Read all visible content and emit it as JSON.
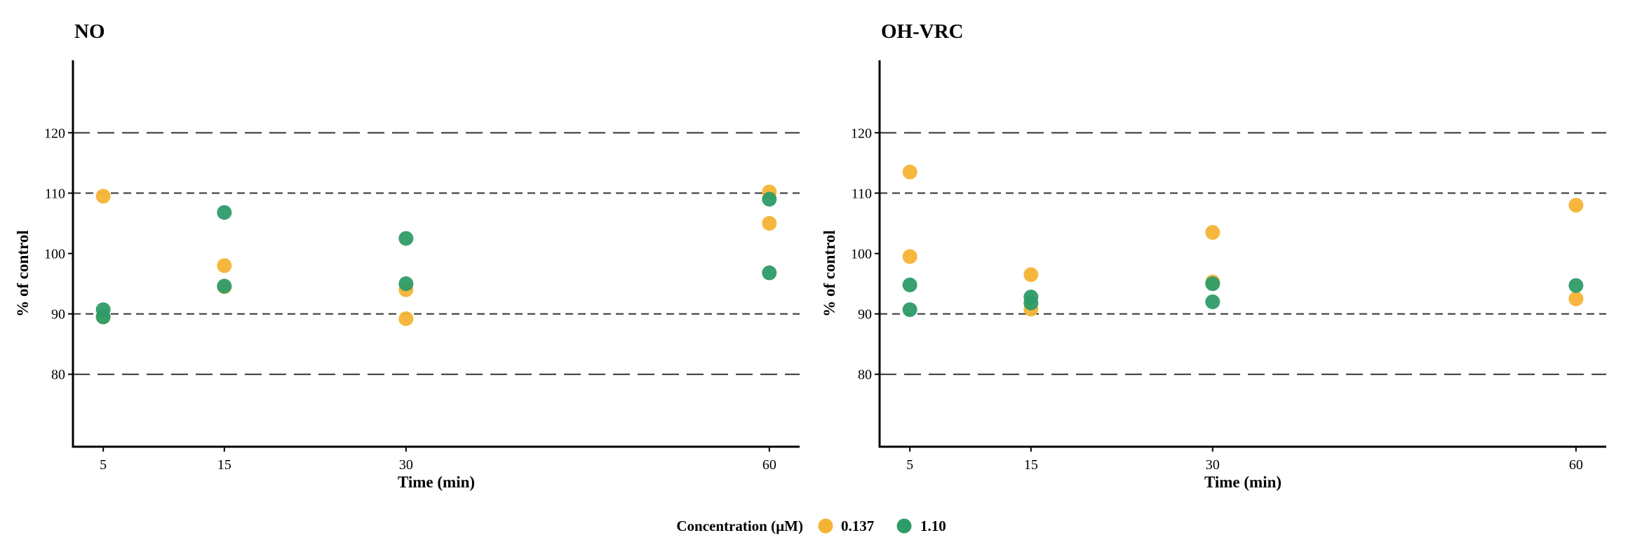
{
  "legend": {
    "title": "Concentration (µM)",
    "items": [
      {
        "label": "0.137",
        "color": "#F5B335"
      },
      {
        "label": "1.10",
        "color": "#2E9B68"
      }
    ]
  },
  "chart_data": [
    {
      "type": "scatter",
      "title": "NO",
      "xlabel": "Time (min)",
      "ylabel": "% of control",
      "x_ticks": [
        5,
        15,
        30,
        60
      ],
      "y_ticks": [
        80,
        90,
        100,
        110,
        120
      ],
      "xlim": [
        2.5,
        62.5
      ],
      "ylim": [
        68,
        132
      ],
      "reference_lines": {
        "long_dash": [
          80,
          120
        ],
        "short_dash": [
          90,
          110
        ]
      },
      "series": [
        {
          "name": "0.137",
          "color": "#F5B335",
          "points": [
            [
              5,
              109.5
            ],
            [
              5,
              89.5
            ],
            [
              15,
              98.0
            ],
            [
              15,
              94.5
            ],
            [
              30,
              94.0
            ],
            [
              30,
              89.2
            ],
            [
              60,
              110.2
            ],
            [
              60,
              105.0
            ]
          ]
        },
        {
          "name": "1.10",
          "color": "#2E9B68",
          "points": [
            [
              5,
              90.7
            ],
            [
              5,
              89.5
            ],
            [
              15,
              106.8
            ],
            [
              15,
              94.6
            ],
            [
              30,
              102.5
            ],
            [
              30,
              95.0
            ],
            [
              60,
              109.0
            ],
            [
              60,
              96.8
            ]
          ]
        }
      ]
    },
    {
      "type": "scatter",
      "title": "OH-VRC",
      "xlabel": "Time (min)",
      "ylabel": "% of control",
      "x_ticks": [
        5,
        15,
        30,
        60
      ],
      "y_ticks": [
        80,
        90,
        100,
        110,
        120
      ],
      "xlim": [
        2.5,
        62.5
      ],
      "ylim": [
        68,
        132
      ],
      "reference_lines": {
        "long_dash": [
          80,
          120
        ],
        "short_dash": [
          90,
          110
        ]
      },
      "series": [
        {
          "name": "0.137",
          "color": "#F5B335",
          "points": [
            [
              5,
              113.5
            ],
            [
              5,
              99.5
            ],
            [
              15,
              96.5
            ],
            [
              15,
              90.8
            ],
            [
              30,
              103.5
            ],
            [
              30,
              95.3
            ],
            [
              60,
              108.0
            ],
            [
              60,
              92.5
            ]
          ]
        },
        {
          "name": "1.10",
          "color": "#2E9B68",
          "points": [
            [
              5,
              94.8
            ],
            [
              5,
              90.7
            ],
            [
              15,
              92.8
            ],
            [
              15,
              91.8
            ],
            [
              30,
              95.0
            ],
            [
              30,
              92.0
            ],
            [
              60,
              94.7
            ]
          ]
        }
      ]
    }
  ]
}
